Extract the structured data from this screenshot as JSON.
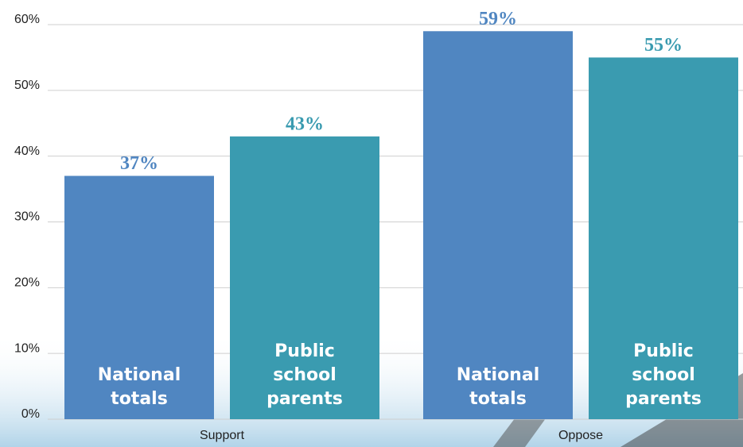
{
  "chart_data": {
    "type": "bar",
    "categories": [
      "Support",
      "Oppose"
    ],
    "series": [
      {
        "name": "National totals",
        "color": "#5086c1",
        "values": [
          37,
          59
        ],
        "value_labels": [
          "37%",
          "59%"
        ]
      },
      {
        "name": "Public school parents",
        "color": "#3a9bb0",
        "values": [
          43,
          55
        ],
        "value_labels": [
          "43%",
          "55%"
        ]
      }
    ],
    "ylim": [
      0,
      60
    ],
    "yticks": [
      {
        "value": 0,
        "label": "0%"
      },
      {
        "value": 10,
        "label": "10%"
      },
      {
        "value": 20,
        "label": "20%"
      },
      {
        "value": 30,
        "label": "30%"
      },
      {
        "value": 40,
        "label": "40%"
      },
      {
        "value": 50,
        "label": "50%"
      },
      {
        "value": 60,
        "label": "60%"
      }
    ],
    "grid": true
  }
}
